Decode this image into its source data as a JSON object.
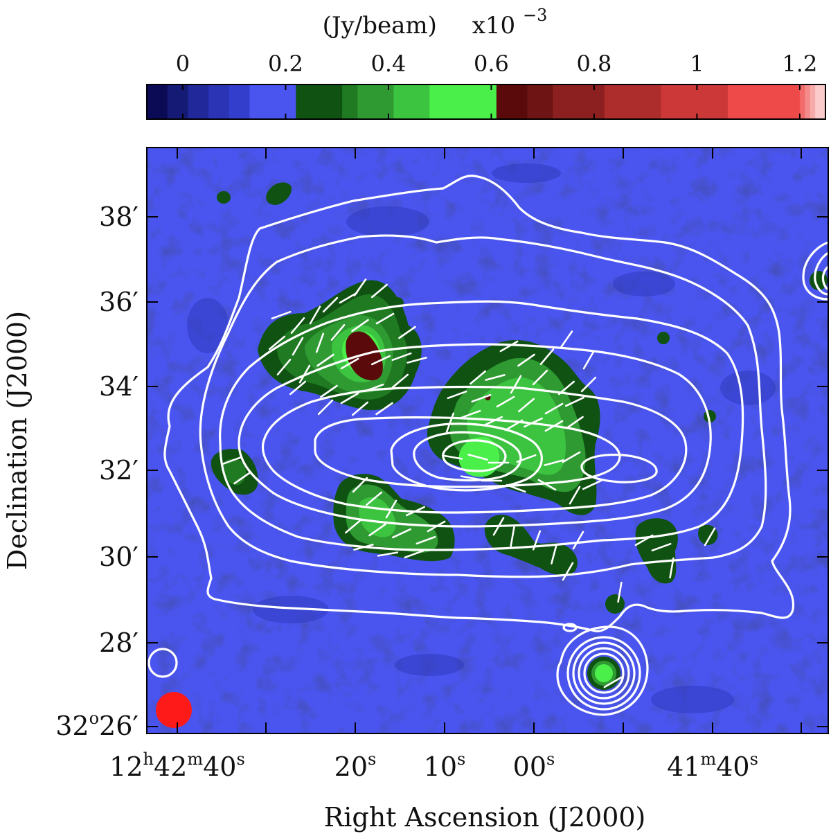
{
  "chart_data": {
    "type": "heatmap",
    "colorbar": {
      "label": "(Jy/beam)",
      "exponent_base": "x10",
      "exponent_power": "−3",
      "ticks": [
        "0",
        "0.2",
        "0.4",
        "0.6",
        "0.8",
        "1",
        "1.2"
      ],
      "tick_values": [
        0,
        0.2,
        0.4,
        0.6,
        0.8,
        1.0,
        1.2
      ],
      "range": [
        -0.07,
        1.25
      ],
      "segments": [
        {
          "from": -0.07,
          "to": -0.03,
          "color": "#0b0b55"
        },
        {
          "from": -0.03,
          "to": 0.01,
          "color": "#151a75"
        },
        {
          "from": 0.01,
          "to": 0.05,
          "color": "#20289a"
        },
        {
          "from": 0.05,
          "to": 0.09,
          "color": "#2a34b5"
        },
        {
          "from": 0.09,
          "to": 0.13,
          "color": "#333fcc"
        },
        {
          "from": 0.13,
          "to": 0.22,
          "color": "#4a55f0"
        },
        {
          "from": 0.22,
          "to": 0.31,
          "color": "#0f5212"
        },
        {
          "from": 0.31,
          "to": 0.34,
          "color": "#1f7a22"
        },
        {
          "from": 0.34,
          "to": 0.41,
          "color": "#2f9a32"
        },
        {
          "from": 0.41,
          "to": 0.48,
          "color": "#3cc440"
        },
        {
          "from": 0.48,
          "to": 0.61,
          "color": "#4aef4a"
        },
        {
          "from": 0.61,
          "to": 0.67,
          "color": "#5a0a0a"
        },
        {
          "from": 0.67,
          "to": 0.72,
          "color": "#6e1414"
        },
        {
          "from": 0.72,
          "to": 0.82,
          "color": "#8c2020"
        },
        {
          "from": 0.82,
          "to": 0.93,
          "color": "#ad2c2c"
        },
        {
          "from": 0.93,
          "to": 1.06,
          "color": "#cc3838"
        },
        {
          "from": 1.06,
          "to": 1.2,
          "color": "#ef4a4a"
        },
        {
          "from": 1.2,
          "to": 1.21,
          "color": "#f26a6a"
        },
        {
          "from": 1.21,
          "to": 1.22,
          "color": "#f48a8a"
        },
        {
          "from": 1.22,
          "to": 1.23,
          "color": "#f7aaaa"
        },
        {
          "from": 1.23,
          "to": 1.25,
          "color": "#fbcaca"
        }
      ]
    },
    "x_axis": {
      "label": "Right Ascension (J2000)",
      "ticks": [
        {
          "value": "12h42m40s",
          "parts": [
            [
              "12",
              ""
            ],
            [
              "h",
              "sup"
            ],
            [
              "42",
              ""
            ],
            [
              "m",
              "sup"
            ],
            [
              "40",
              ""
            ],
            [
              "s",
              "sup"
            ]
          ]
        },
        {
          "value": "20s",
          "parts": [
            [
              "20",
              ""
            ],
            [
              "s",
              "sup"
            ]
          ]
        },
        {
          "value": "10s",
          "parts": [
            [
              "10",
              ""
            ],
            [
              "s",
              "sup"
            ]
          ]
        },
        {
          "value": "00s",
          "parts": [
            [
              "00",
              ""
            ],
            [
              "s",
              "sup"
            ]
          ]
        },
        {
          "value": "41m40s",
          "parts": [
            [
              "41",
              ""
            ],
            [
              "m",
              "sup"
            ],
            [
              "40",
              ""
            ],
            [
              "s",
              "sup"
            ]
          ]
        }
      ]
    },
    "y_axis": {
      "label": "Declination (J2000)",
      "ticks": [
        {
          "value": "32o26'",
          "parts": [
            [
              "32",
              ""
            ],
            [
              "o",
              "sup"
            ],
            [
              "26′",
              ""
            ]
          ]
        },
        {
          "value": "28'",
          "parts": [
            [
              "28′",
              ""
            ]
          ]
        },
        {
          "value": "30'",
          "parts": [
            [
              "30′",
              ""
            ]
          ]
        },
        {
          "value": "32'",
          "parts": [
            [
              "32′",
              ""
            ]
          ]
        },
        {
          "value": "34'",
          "parts": [
            [
              "34′",
              ""
            ]
          ]
        },
        {
          "value": "36'",
          "parts": [
            [
              "36′",
              ""
            ]
          ]
        },
        {
          "value": "38'",
          "parts": [
            [
              "38′",
              ""
            ]
          ]
        }
      ]
    },
    "overlays": {
      "contours": "white total-intensity contours",
      "vectors": "white polarization vectors",
      "beam": "red circle bottom-left"
    },
    "colors": {
      "background": "#4a55f0",
      "contour": "#ffffff",
      "beam": "#ff1a1a"
    }
  }
}
